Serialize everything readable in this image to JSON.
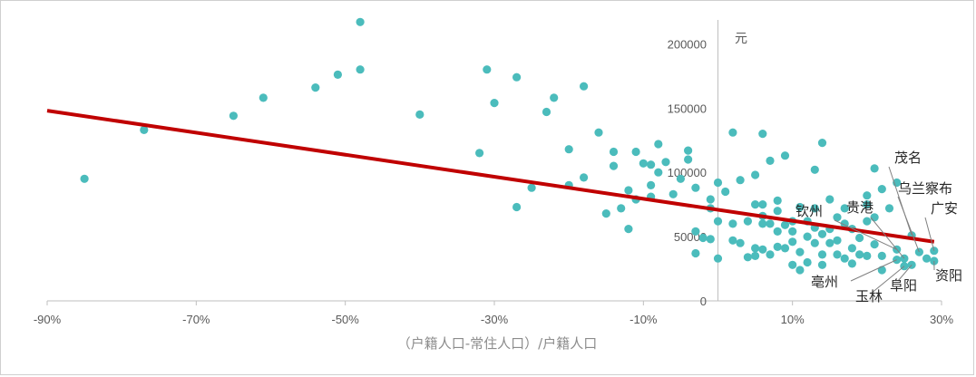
{
  "chart_data": {
    "type": "scatter",
    "xlabel": "（户籍人口-常住人口）/户籍人口",
    "ylabel": "元",
    "xlim": [
      -0.9,
      0.3
    ],
    "ylim": [
      0,
      220000
    ],
    "x_ticks": [
      "-90%",
      "-70%",
      "-50%",
      "-30%",
      "-10%",
      "10%",
      "30%"
    ],
    "y_ticks": [
      "0",
      "50000",
      "100000",
      "150000",
      "200000"
    ],
    "grid": false,
    "colors": {
      "points": "#4bbcbc",
      "trend": "#c00000",
      "axis": "#bfbfbf",
      "leader": "#808080"
    },
    "trendline": {
      "x": [
        -0.9,
        0.29
      ],
      "y": [
        148000,
        46000
      ]
    },
    "points": [
      [
        -0.85,
        95000
      ],
      [
        -0.77,
        133000
      ],
      [
        -0.65,
        144000
      ],
      [
        -0.61,
        158000
      ],
      [
        -0.54,
        166000
      ],
      [
        -0.51,
        176000
      ],
      [
        -0.48,
        217000
      ],
      [
        -0.48,
        180000
      ],
      [
        -0.4,
        145000
      ],
      [
        -0.32,
        115000
      ],
      [
        -0.31,
        180000
      ],
      [
        -0.3,
        154000
      ],
      [
        -0.27,
        174000
      ],
      [
        -0.27,
        73000
      ],
      [
        -0.25,
        88000
      ],
      [
        -0.23,
        147000
      ],
      [
        -0.22,
        158000
      ],
      [
        -0.2,
        90000
      ],
      [
        -0.2,
        118000
      ],
      [
        -0.18,
        96000
      ],
      [
        -0.18,
        167000
      ],
      [
        -0.16,
        131000
      ],
      [
        -0.15,
        68000
      ],
      [
        -0.14,
        116000
      ],
      [
        -0.14,
        105000
      ],
      [
        -0.13,
        72000
      ],
      [
        -0.12,
        86000
      ],
      [
        -0.12,
        56000
      ],
      [
        -0.11,
        116000
      ],
      [
        -0.11,
        79000
      ],
      [
        -0.1,
        107000
      ],
      [
        -0.09,
        81000
      ],
      [
        -0.09,
        106000
      ],
      [
        -0.09,
        90000
      ],
      [
        -0.08,
        122000
      ],
      [
        -0.08,
        100000
      ],
      [
        -0.07,
        108000
      ],
      [
        -0.06,
        83000
      ],
      [
        -0.05,
        95000
      ],
      [
        -0.04,
        117000
      ],
      [
        -0.04,
        110000
      ],
      [
        -0.03,
        88000
      ],
      [
        -0.03,
        37000
      ],
      [
        -0.03,
        54000
      ],
      [
        -0.02,
        49000
      ],
      [
        -0.01,
        48000
      ],
      [
        -0.01,
        79000
      ],
      [
        -0.01,
        72000
      ],
      [
        0.0,
        92000
      ],
      [
        0.0,
        33000
      ],
      [
        0.0,
        62000
      ],
      [
        0.01,
        85000
      ],
      [
        0.02,
        60000
      ],
      [
        0.02,
        131000
      ],
      [
        0.02,
        47000
      ],
      [
        0.03,
        94000
      ],
      [
        0.03,
        45000
      ],
      [
        0.04,
        62000
      ],
      [
        0.04,
        34000
      ],
      [
        0.05,
        98000
      ],
      [
        0.05,
        35000
      ],
      [
        0.05,
        75000
      ],
      [
        0.05,
        41000
      ],
      [
        0.06,
        60000
      ],
      [
        0.06,
        130000
      ],
      [
        0.06,
        66000
      ],
      [
        0.06,
        40000
      ],
      [
        0.06,
        75000
      ],
      [
        0.07,
        109000
      ],
      [
        0.07,
        60000
      ],
      [
        0.07,
        36000
      ],
      [
        0.08,
        78000
      ],
      [
        0.08,
        42000
      ],
      [
        0.08,
        54000
      ],
      [
        0.08,
        70000
      ],
      [
        0.09,
        41000
      ],
      [
        0.09,
        59000
      ],
      [
        0.09,
        113000
      ],
      [
        0.1,
        28000
      ],
      [
        0.1,
        46000
      ],
      [
        0.1,
        62000
      ],
      [
        0.1,
        54000
      ],
      [
        0.11,
        73000
      ],
      [
        0.11,
        38000
      ],
      [
        0.11,
        24000
      ],
      [
        0.12,
        62000
      ],
      [
        0.12,
        50000
      ],
      [
        0.12,
        30000
      ],
      [
        0.13,
        45000
      ],
      [
        0.13,
        72000
      ],
      [
        0.13,
        102000
      ],
      [
        0.13,
        57000
      ],
      [
        0.14,
        36000
      ],
      [
        0.14,
        52000
      ],
      [
        0.14,
        123000
      ],
      [
        0.14,
        28000
      ],
      [
        0.15,
        45000
      ],
      [
        0.15,
        79000
      ],
      [
        0.15,
        56000
      ],
      [
        0.16,
        65000
      ],
      [
        0.16,
        36000
      ],
      [
        0.16,
        47000
      ],
      [
        0.17,
        33000
      ],
      [
        0.17,
        72000
      ],
      [
        0.17,
        60000
      ],
      [
        0.18,
        41000
      ],
      [
        0.18,
        29000
      ],
      [
        0.18,
        56000
      ],
      [
        0.19,
        49000
      ],
      [
        0.19,
        36000
      ],
      [
        0.2,
        35000
      ],
      [
        0.2,
        82000
      ],
      [
        0.2,
        75000
      ],
      [
        0.2,
        62000
      ],
      [
        0.21,
        65000
      ],
      [
        0.21,
        44000
      ],
      [
        0.21,
        103000
      ],
      [
        0.22,
        24000
      ],
      [
        0.22,
        35000
      ],
      [
        0.22,
        87000
      ],
      [
        0.23,
        72000
      ],
      [
        0.24,
        32000
      ],
      [
        0.24,
        92000
      ],
      [
        0.24,
        40000
      ],
      [
        0.25,
        27000
      ],
      [
        0.25,
        33000
      ],
      [
        0.26,
        51000
      ],
      [
        0.26,
        28000
      ],
      [
        0.27,
        38000
      ],
      [
        0.28,
        33000
      ],
      [
        0.29,
        31000
      ],
      [
        0.29,
        39000
      ]
    ],
    "annotations": [
      {
        "label": "茂名",
        "x": 0.26,
        "y": 51000
      },
      {
        "label": "乌兰察布",
        "x": 0.27,
        "y": 38000
      },
      {
        "label": "广安",
        "x": 0.29,
        "y": 39000
      },
      {
        "label": "钦州",
        "x": 0.24,
        "y": 40000
      },
      {
        "label": "贵港",
        "x": 0.25,
        "y": 33000
      },
      {
        "label": "资阳",
        "x": 0.29,
        "y": 31000
      },
      {
        "label": "亳州",
        "x": 0.24,
        "y": 32000
      },
      {
        "label": "玉林",
        "x": 0.25,
        "y": 27000
      },
      {
        "label": "阜阳",
        "x": 0.26,
        "y": 28000
      }
    ]
  }
}
